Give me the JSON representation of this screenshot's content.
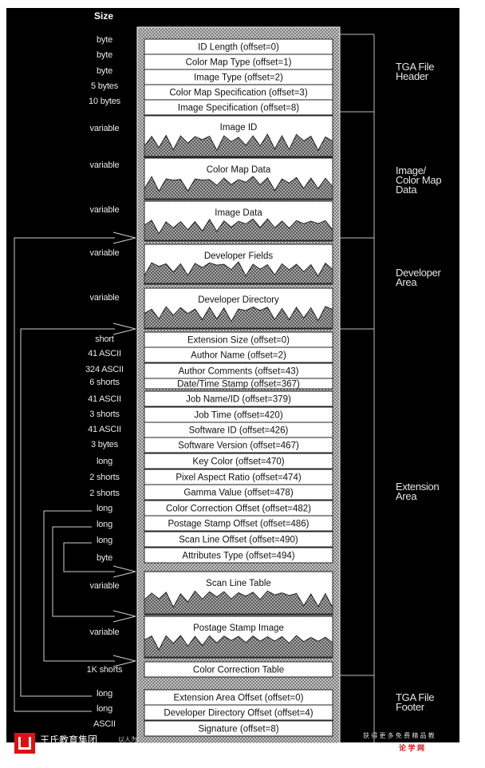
{
  "header": {
    "size_label": "Size"
  },
  "rows": [
    {
      "size": "byte",
      "label": "ID Length (offset=0)"
    },
    {
      "size": "byte",
      "label": "Color Map Type (offset=1)"
    },
    {
      "size": "byte",
      "label": "Image Type (offset=2)"
    },
    {
      "size": "5 bytes",
      "label": "Color Map Specification (offset=3)"
    },
    {
      "size": "10 bytes",
      "label": "Image Specification (offset=8)"
    },
    {
      "size": "variable",
      "label": "Image ID"
    },
    {
      "size": "variable",
      "label": "Color Map Data"
    },
    {
      "size": "variable",
      "label": "Image Data"
    },
    {
      "size": "variable",
      "label": "Developer Fields"
    },
    {
      "size": "variable",
      "label": "Developer Directory"
    },
    {
      "size": "short",
      "label": "Extension Size (offset=0)"
    },
    {
      "size": "41 ASCII",
      "label": "Author Name (offset=2)"
    },
    {
      "size": "324 ASCII",
      "label": "Author Comments (offset=43)"
    },
    {
      "size": "6 shorts",
      "label": "Date/Time Stamp (offset=367)"
    },
    {
      "size": "41 ASCII",
      "label": "Job Name/ID (offset=379)"
    },
    {
      "size": "3 shorts",
      "label": "Job Time (offset=420)"
    },
    {
      "size": "41 ASCII",
      "label": "Software ID (offset=426)"
    },
    {
      "size": "3 bytes",
      "label": "Software Version (offset=467)"
    },
    {
      "size": "long",
      "label": "Key Color (offset=470)"
    },
    {
      "size": "2 shorts",
      "label": "Pixel Aspect Ratio (offset=474)"
    },
    {
      "size": "2 shorts",
      "label": "Gamma Value (offset=478)"
    },
    {
      "size": "long",
      "label": "Color Correction Offset (offset=482)"
    },
    {
      "size": "long",
      "label": "Postage Stamp Offset (offset=486)"
    },
    {
      "size": "long",
      "label": "Scan Line Offset (offset=490)"
    },
    {
      "size": "byte",
      "label": "Attributes Type (offset=494)"
    },
    {
      "size": "variable",
      "label": "Scan Line Table"
    },
    {
      "size": "variable",
      "label": "Postage Stamp Image"
    },
    {
      "size": "1K shorts",
      "label": "Color Correction Table"
    },
    {
      "size": "long",
      "label": "Extension Area Offset (offset=0)"
    },
    {
      "size": "long",
      "label": "Developer Directory Offset (offset=4)"
    },
    {
      "size": "ASCII",
      "label": "Signature (offset=8)"
    }
  ],
  "sections": [
    {
      "lines": [
        "TGA File",
        "Header"
      ]
    },
    {
      "lines": [
        "Image/",
        "Color Map",
        "Data"
      ]
    },
    {
      "lines": [
        "Developer",
        "Area"
      ]
    },
    {
      "lines": [
        "Extension",
        "Area"
      ]
    },
    {
      "lines": [
        "TGA File",
        "Footer"
      ]
    }
  ],
  "watermark": {
    "company": "王氏教育集团",
    "company_small": "以人为",
    "right_text": "获 得 更 多 免 费 精 品 教",
    "right_link": "论 学 网"
  },
  "colors": {
    "background": "#000000",
    "box_fill": "#ffffff",
    "hatch": "#9a9a9a",
    "sub_text": "#e8e8e8",
    "watermark_red": "#e01010"
  }
}
